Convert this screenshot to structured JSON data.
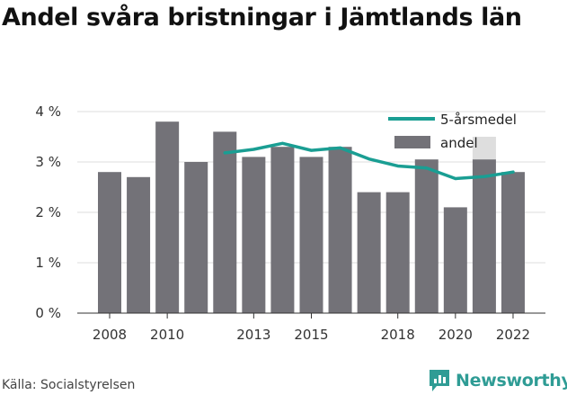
{
  "title": "Andel svåra bristningar i Jämtlands län",
  "source": "Källa: Socialstyrelsen",
  "brand": {
    "name": "Newsworthy",
    "icon": "newsworthy-logo-icon",
    "color": "#2f9c95"
  },
  "chart_data": {
    "type": "bar",
    "title": "Andel svåra bristningar i Jämtlands län",
    "x": [
      2008,
      2009,
      2010,
      2011,
      2012,
      2013,
      2014,
      2015,
      2016,
      2017,
      2018,
      2019,
      2020,
      2021,
      2022
    ],
    "x_tick_labels": [
      "2008",
      "2010",
      "2013",
      "2015",
      "2018",
      "2020",
      "2022"
    ],
    "x_tick_values": [
      2008,
      2010,
      2013,
      2015,
      2018,
      2020,
      2022
    ],
    "ylim": [
      0,
      4
    ],
    "y_ticks": [
      0,
      1,
      2,
      3,
      4
    ],
    "y_tick_labels": [
      "0 %",
      "1 %",
      "2 %",
      "3 %",
      "4 %"
    ],
    "grid": true,
    "legend_position": "top-right",
    "series": [
      {
        "name": "5-årsmedel",
        "type": "line",
        "color": "#1a9e93",
        "x": [
          2012,
          2013,
          2014,
          2015,
          2016,
          2017,
          2018,
          2019,
          2020,
          2021,
          2022
        ],
        "values": [
          3.18,
          3.25,
          3.37,
          3.23,
          3.28,
          3.06,
          2.92,
          2.88,
          2.67,
          2.71,
          2.8
        ]
      },
      {
        "name": "andel",
        "type": "bar",
        "color": "#737278",
        "x": [
          2008,
          2009,
          2010,
          2011,
          2012,
          2013,
          2014,
          2015,
          2016,
          2017,
          2018,
          2019,
          2020,
          2021,
          2022
        ],
        "values": [
          2.8,
          2.7,
          3.8,
          3.0,
          3.6,
          3.1,
          3.3,
          3.1,
          3.3,
          2.4,
          2.4,
          3.05,
          2.1,
          3.05,
          2.8
        ]
      }
    ],
    "annotations": [
      {
        "x": 2021,
        "type": "uncertainty-range",
        "low": 3.05,
        "high": 3.5,
        "color": "#dedede"
      }
    ]
  }
}
